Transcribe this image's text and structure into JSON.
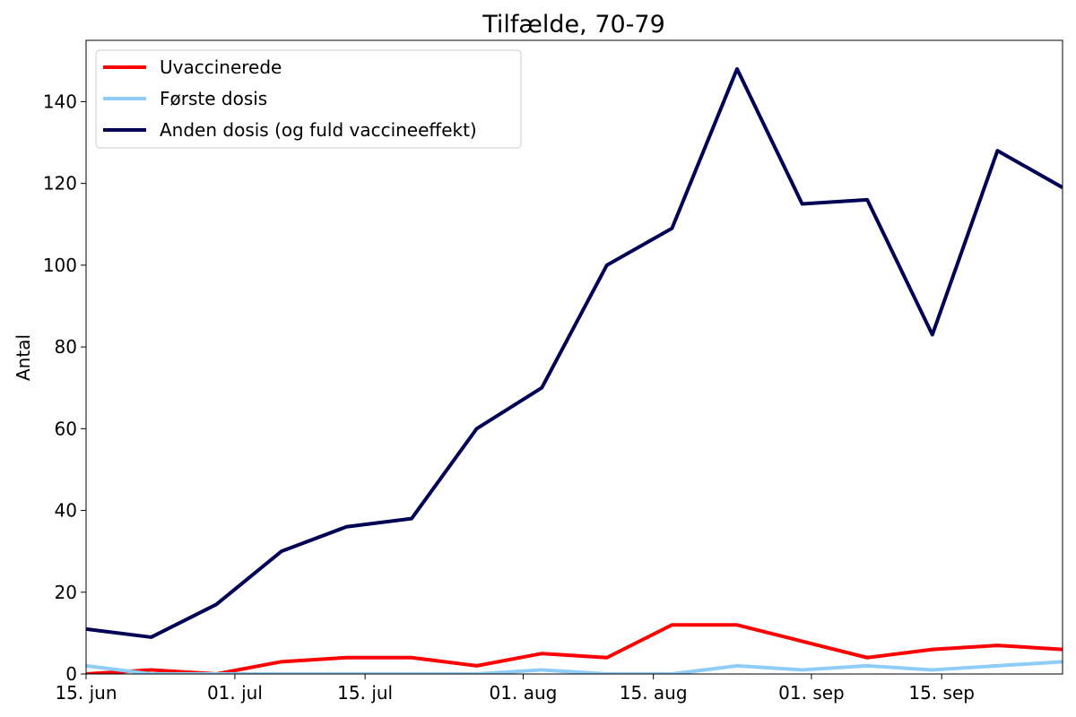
{
  "chart_data": {
    "type": "line",
    "title": "Tilfælde, 70-79",
    "xlabel": "",
    "ylabel": "Antal",
    "x": [
      "2021-06-15",
      "2021-06-22",
      "2021-06-29",
      "2021-07-06",
      "2021-07-13",
      "2021-07-20",
      "2021-07-27",
      "2021-08-03",
      "2021-08-10",
      "2021-08-17",
      "2021-08-24",
      "2021-08-31",
      "2021-09-07",
      "2021-09-14",
      "2021-09-21",
      "2021-09-28"
    ],
    "xlim": [
      "2021-06-15",
      "2021-09-28"
    ],
    "ylim": [
      0,
      155
    ],
    "x_ticks": [
      {
        "date": "2021-06-15",
        "label": "15. jun"
      },
      {
        "date": "2021-07-01",
        "label": "01. jul"
      },
      {
        "date": "2021-07-15",
        "label": "15. jul"
      },
      {
        "date": "2021-08-01",
        "label": "01. aug"
      },
      {
        "date": "2021-08-15",
        "label": "15. aug"
      },
      {
        "date": "2021-09-01",
        "label": "01. sep"
      },
      {
        "date": "2021-09-15",
        "label": "15. sep"
      }
    ],
    "y_ticks": [
      0,
      20,
      40,
      60,
      80,
      100,
      120,
      140
    ],
    "grid": false,
    "legend_position": "top-left",
    "series": [
      {
        "name": "Uvaccinerede",
        "color": "#ff0000",
        "values": [
          0,
          1,
          0,
          3,
          4,
          4,
          2,
          5,
          4,
          12,
          12,
          8,
          4,
          6,
          7,
          6
        ]
      },
      {
        "name": "Første dosis",
        "color": "#8ecdf8",
        "values": [
          2,
          0,
          0,
          0,
          0,
          0,
          0,
          1,
          0,
          0,
          2,
          1,
          2,
          1,
          2,
          3
        ]
      },
      {
        "name": "Anden dosis (og fuld vaccineeffekt)",
        "color": "#000055",
        "values": [
          11,
          9,
          17,
          30,
          36,
          38,
          60,
          70,
          100,
          109,
          148,
          115,
          116,
          83,
          128,
          119
        ]
      }
    ]
  }
}
